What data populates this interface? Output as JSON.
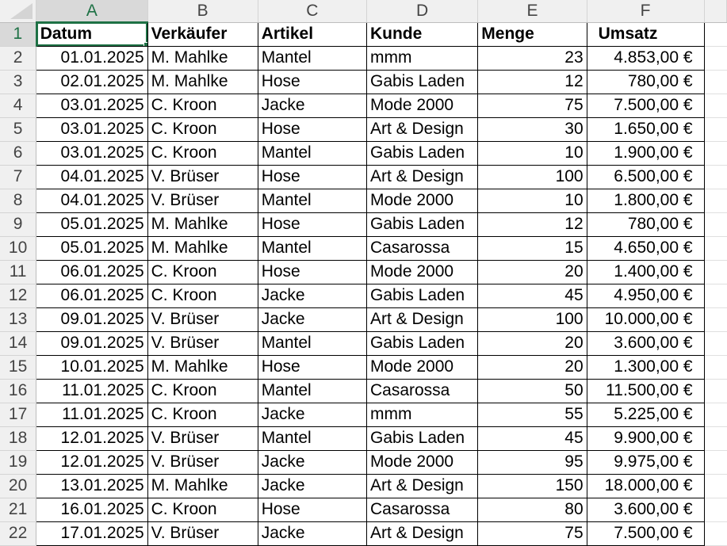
{
  "sheet": {
    "columns": [
      "A",
      "B",
      "C",
      "D",
      "E",
      "F"
    ],
    "selected_cell": "A1",
    "accent_color": "#1e7145",
    "header_row": {
      "row": "1",
      "cells": [
        "Datum",
        "Verkäufer",
        "Artikel",
        "Kunde",
        "Menge",
        "Umsatz"
      ]
    },
    "rows": [
      {
        "row": "2",
        "cells": [
          "01.01.2025",
          "M. Mahlke",
          "Mantel",
          "mmm",
          "23",
          "4.853,00 €"
        ]
      },
      {
        "row": "3",
        "cells": [
          "02.01.2025",
          "M. Mahlke",
          "Hose",
          "Gabis Laden",
          "12",
          "780,00 €"
        ]
      },
      {
        "row": "4",
        "cells": [
          "03.01.2025",
          "C. Kroon",
          "Jacke",
          "Mode 2000",
          "75",
          "7.500,00 €"
        ]
      },
      {
        "row": "5",
        "cells": [
          "03.01.2025",
          "C. Kroon",
          "Hose",
          "Art & Design",
          "30",
          "1.650,00 €"
        ]
      },
      {
        "row": "6",
        "cells": [
          "03.01.2025",
          "C. Kroon",
          "Mantel",
          "Gabis Laden",
          "10",
          "1.900,00 €"
        ]
      },
      {
        "row": "7",
        "cells": [
          "04.01.2025",
          "V. Brüser",
          "Hose",
          "Art & Design",
          "100",
          "6.500,00 €"
        ]
      },
      {
        "row": "8",
        "cells": [
          "04.01.2025",
          "V. Brüser",
          "Mantel",
          "Mode 2000",
          "10",
          "1.800,00 €"
        ]
      },
      {
        "row": "9",
        "cells": [
          "05.01.2025",
          "M. Mahlke",
          "Hose",
          "Gabis Laden",
          "12",
          "780,00 €"
        ]
      },
      {
        "row": "10",
        "cells": [
          "05.01.2025",
          "M. Mahlke",
          "Mantel",
          "Casarossa",
          "15",
          "4.650,00 €"
        ]
      },
      {
        "row": "11",
        "cells": [
          "06.01.2025",
          "C. Kroon",
          "Hose",
          "Mode 2000",
          "20",
          "1.400,00 €"
        ]
      },
      {
        "row": "12",
        "cells": [
          "06.01.2025",
          "C. Kroon",
          "Jacke",
          "Gabis Laden",
          "45",
          "4.950,00 €"
        ]
      },
      {
        "row": "13",
        "cells": [
          "09.01.2025",
          "V. Brüser",
          "Jacke",
          "Art & Design",
          "100",
          "10.000,00 €"
        ]
      },
      {
        "row": "14",
        "cells": [
          "09.01.2025",
          "V. Brüser",
          "Mantel",
          "Gabis Laden",
          "20",
          "3.600,00 €"
        ]
      },
      {
        "row": "15",
        "cells": [
          "10.01.2025",
          "M. Mahlke",
          "Hose",
          "Mode 2000",
          "20",
          "1.300,00 €"
        ]
      },
      {
        "row": "16",
        "cells": [
          "11.01.2025",
          "C. Kroon",
          "Mantel",
          "Casarossa",
          "50",
          "11.500,00 €"
        ]
      },
      {
        "row": "17",
        "cells": [
          "11.01.2025",
          "C. Kroon",
          "Jacke",
          "mmm",
          "55",
          "5.225,00 €"
        ]
      },
      {
        "row": "18",
        "cells": [
          "12.01.2025",
          "V. Brüser",
          "Mantel",
          "Gabis Laden",
          "45",
          "9.900,00 €"
        ]
      },
      {
        "row": "19",
        "cells": [
          "12.01.2025",
          "V. Brüser",
          "Jacke",
          "Mode 2000",
          "95",
          "9.975,00 €"
        ]
      },
      {
        "row": "20",
        "cells": [
          "13.01.2025",
          "M. Mahlke",
          "Jacke",
          "Art & Design",
          "150",
          "18.000,00 €"
        ]
      },
      {
        "row": "21",
        "cells": [
          "16.01.2025",
          "C. Kroon",
          "Hose",
          "Casarossa",
          "80",
          "3.600,00 €"
        ]
      },
      {
        "row": "22",
        "cells": [
          "17.01.2025",
          "V. Brüser",
          "Jacke",
          "Art & Design",
          "75",
          "7.500,00 €"
        ]
      }
    ]
  }
}
